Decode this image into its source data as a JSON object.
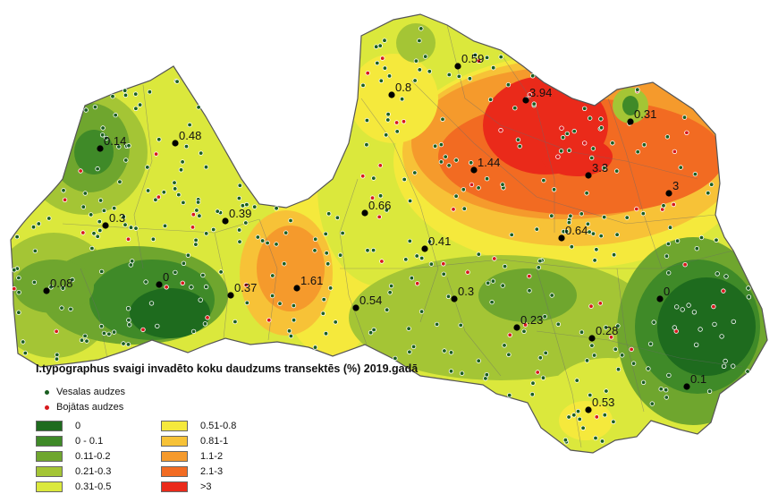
{
  "title": "I.typographus svaigi invadēto koku daudzums transektēs (%) 2019.gadā",
  "point_legend": [
    {
      "label": "Vesalas audzes",
      "color": "#1a5e20"
    },
    {
      "label": "Bojātas audzes",
      "color": "#d7191c"
    }
  ],
  "classes": [
    {
      "label": "0",
      "color": "#1e6b1e"
    },
    {
      "label": "0 - 0.1",
      "color": "#3f8a28"
    },
    {
      "label": "0.11-0.2",
      "color": "#6fa62e"
    },
    {
      "label": "0.21-0.3",
      "color": "#a4c535"
    },
    {
      "label": "0.31-0.5",
      "color": "#dbe83c"
    },
    {
      "label": "0.51-0.8",
      "color": "#f5e93c"
    },
    {
      "label": "0.81-1",
      "color": "#f7c237"
    },
    {
      "label": "1.1-2",
      "color": "#f59a2c"
    },
    {
      "label": "2.1-3",
      "color": "#f26b22"
    },
    {
      "label": ">3",
      "color": "#ea2a1a"
    }
  ],
  "measurements": [
    "0.14",
    "0.48",
    "0.3",
    "0.08",
    "0",
    "0.39",
    "0.37",
    "1.61",
    "0.54",
    "0.66",
    "0.41",
    "0.8",
    "0.59",
    "3.94",
    "1.44",
    "3.3",
    "3",
    "0.31",
    "0.64",
    "0.3",
    "0.23",
    "0",
    "0.28",
    "0.1",
    "0.53"
  ]
}
